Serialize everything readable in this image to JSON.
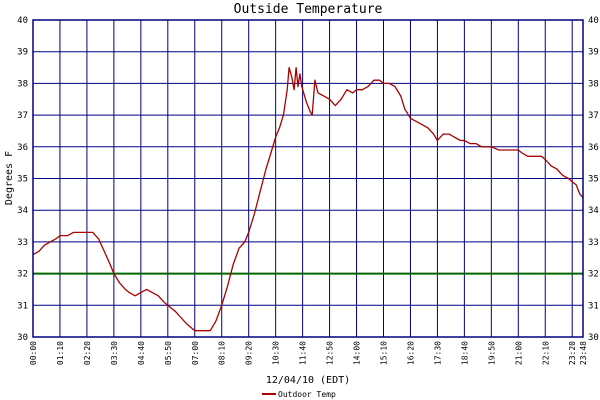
{
  "chart_data": {
    "type": "line",
    "title": "Outside Temperature",
    "xlabel": "12/04/10 (EDT)",
    "ylabel": "Degrees F",
    "ylim": [
      30,
      40
    ],
    "yticks": [
      30,
      31,
      32,
      33,
      34,
      35,
      36,
      37,
      38,
      39,
      40
    ],
    "xlim": [
      "00:00",
      "23:48"
    ],
    "xticks": [
      "00:00",
      "01:10",
      "02:20",
      "03:30",
      "04:40",
      "05:50",
      "07:00",
      "08:10",
      "09:20",
      "10:30",
      "11:40",
      "12:50",
      "14:00",
      "15:10",
      "16:20",
      "17:30",
      "18:40",
      "19:50",
      "21:00",
      "22:10",
      "23:20",
      "23:48"
    ],
    "grid": true,
    "legend": "bottom-center",
    "reference_line": {
      "value": 32,
      "color": "#006600"
    },
    "colors": {
      "series": "#aa0000",
      "grid": "#000080",
      "frame": "#000080",
      "text": "#000000"
    },
    "series": [
      {
        "name": "Outdoor Temp",
        "points": [
          [
            "00:00",
            32.6
          ],
          [
            "00:15",
            32.7
          ],
          [
            "00:30",
            32.9
          ],
          [
            "00:45",
            33.0
          ],
          [
            "01:00",
            33.1
          ],
          [
            "01:10",
            33.2
          ],
          [
            "01:30",
            33.2
          ],
          [
            "01:45",
            33.3
          ],
          [
            "02:00",
            33.3
          ],
          [
            "02:20",
            33.3
          ],
          [
            "02:35",
            33.3
          ],
          [
            "02:50",
            33.1
          ],
          [
            "03:05",
            32.7
          ],
          [
            "03:20",
            32.3
          ],
          [
            "03:30",
            32.0
          ],
          [
            "03:45",
            31.7
          ],
          [
            "04:00",
            31.5
          ],
          [
            "04:10",
            31.4
          ],
          [
            "04:25",
            31.3
          ],
          [
            "04:40",
            31.4
          ],
          [
            "04:55",
            31.5
          ],
          [
            "05:10",
            31.4
          ],
          [
            "05:25",
            31.3
          ],
          [
            "05:40",
            31.1
          ],
          [
            "05:50",
            31.0
          ],
          [
            "06:10",
            30.8
          ],
          [
            "06:25",
            30.6
          ],
          [
            "06:40",
            30.4
          ],
          [
            "07:00",
            30.2
          ],
          [
            "07:20",
            30.2
          ],
          [
            "07:40",
            30.2
          ],
          [
            "07:55",
            30.5
          ],
          [
            "08:10",
            31.0
          ],
          [
            "08:25",
            31.6
          ],
          [
            "08:40",
            32.3
          ],
          [
            "08:55",
            32.8
          ],
          [
            "09:10",
            33.0
          ],
          [
            "09:20",
            33.3
          ],
          [
            "09:35",
            33.9
          ],
          [
            "09:50",
            34.6
          ],
          [
            "10:05",
            35.3
          ],
          [
            "10:20",
            35.9
          ],
          [
            "10:30",
            36.3
          ],
          [
            "10:40",
            36.6
          ],
          [
            "10:50",
            37.0
          ],
          [
            "11:00",
            37.8
          ],
          [
            "11:05",
            38.5
          ],
          [
            "11:12",
            38.2
          ],
          [
            "11:18",
            37.8
          ],
          [
            "11:23",
            38.5
          ],
          [
            "11:28",
            37.9
          ],
          [
            "11:33",
            38.3
          ],
          [
            "11:38",
            37.9
          ],
          [
            "11:50",
            37.4
          ],
          [
            "12:00",
            37.1
          ],
          [
            "12:05",
            37.0
          ],
          [
            "12:12",
            38.1
          ],
          [
            "12:20",
            37.7
          ],
          [
            "12:35",
            37.6
          ],
          [
            "12:50",
            37.5
          ],
          [
            "13:05",
            37.3
          ],
          [
            "13:20",
            37.5
          ],
          [
            "13:35",
            37.8
          ],
          [
            "13:50",
            37.7
          ],
          [
            "14:00",
            37.8
          ],
          [
            "14:15",
            37.8
          ],
          [
            "14:30",
            37.9
          ],
          [
            "14:45",
            38.1
          ],
          [
            "15:00",
            38.1
          ],
          [
            "15:10",
            38.0
          ],
          [
            "15:25",
            38.0
          ],
          [
            "15:40",
            37.9
          ],
          [
            "15:55",
            37.6
          ],
          [
            "16:05",
            37.2
          ],
          [
            "16:20",
            36.9
          ],
          [
            "16:35",
            36.8
          ],
          [
            "16:50",
            36.7
          ],
          [
            "17:05",
            36.6
          ],
          [
            "17:20",
            36.4
          ],
          [
            "17:30",
            36.2
          ],
          [
            "17:45",
            36.4
          ],
          [
            "18:00",
            36.4
          ],
          [
            "18:15",
            36.3
          ],
          [
            "18:30",
            36.2
          ],
          [
            "18:40",
            36.2
          ],
          [
            "18:55",
            36.1
          ],
          [
            "19:10",
            36.1
          ],
          [
            "19:25",
            36.0
          ],
          [
            "19:40",
            36.0
          ],
          [
            "19:50",
            36.0
          ],
          [
            "20:10",
            35.9
          ],
          [
            "20:30",
            35.9
          ],
          [
            "20:50",
            35.9
          ],
          [
            "21:00",
            35.9
          ],
          [
            "21:10",
            35.8
          ],
          [
            "21:25",
            35.7
          ],
          [
            "21:40",
            35.7
          ],
          [
            "21:50",
            35.7
          ],
          [
            "22:00",
            35.7
          ],
          [
            "22:10",
            35.6
          ],
          [
            "22:25",
            35.4
          ],
          [
            "22:40",
            35.3
          ],
          [
            "22:55",
            35.1
          ],
          [
            "23:10",
            35.0
          ],
          [
            "23:20",
            34.9
          ],
          [
            "23:30",
            34.8
          ],
          [
            "23:40",
            34.5
          ],
          [
            "23:48",
            34.4
          ]
        ]
      }
    ]
  }
}
